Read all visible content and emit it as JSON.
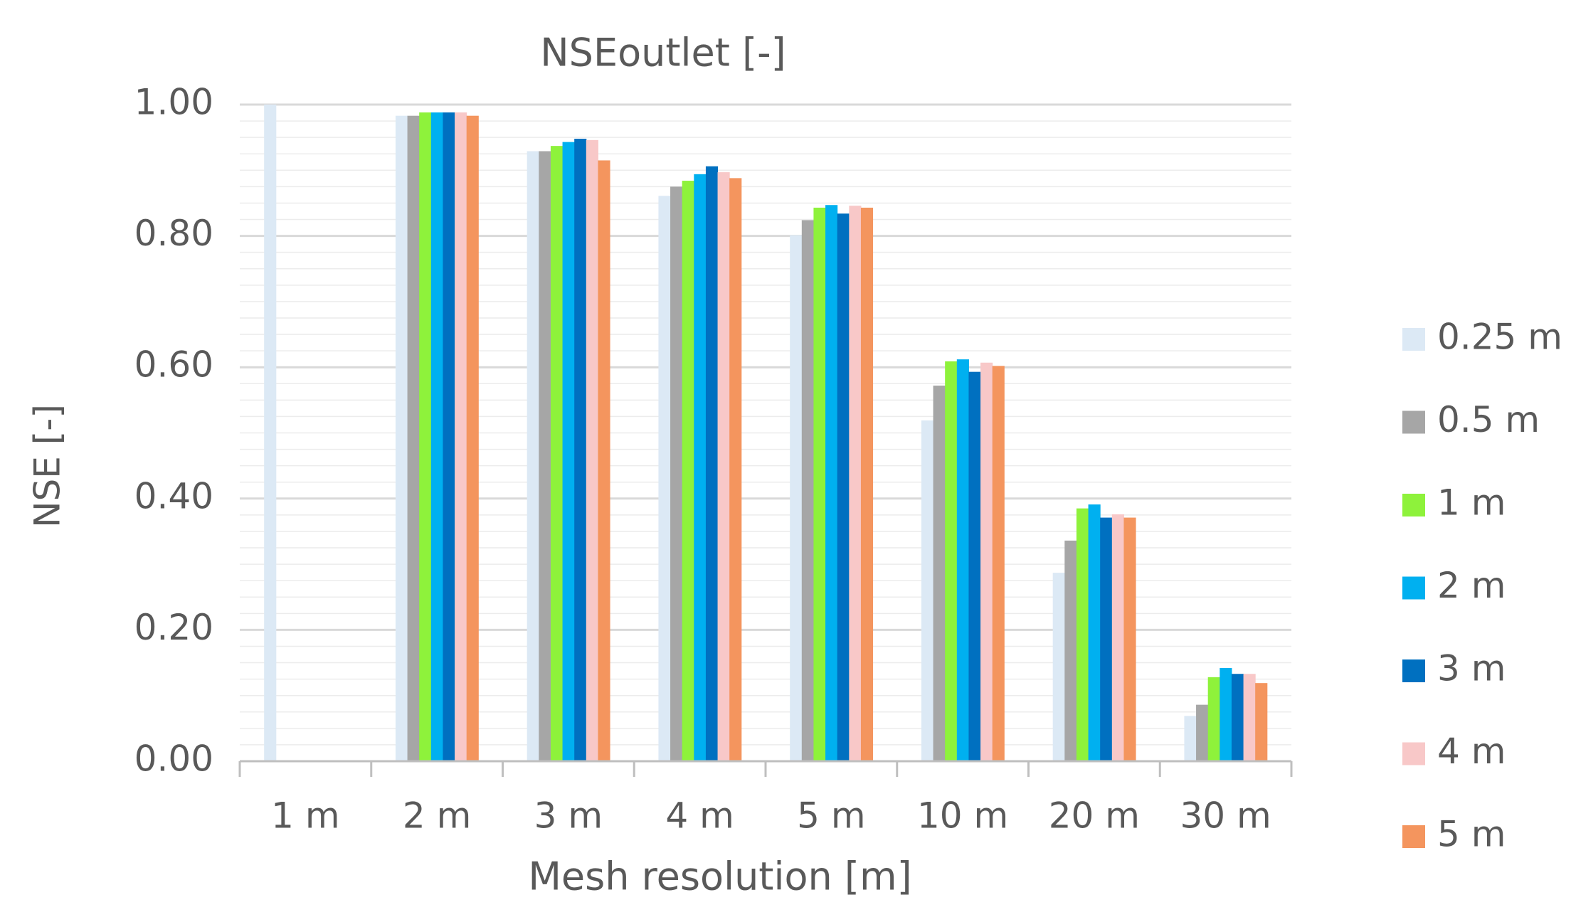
{
  "chart_data": {
    "type": "bar",
    "title": "NSEoutlet [-]",
    "x_label": "Mesh resolution [m]",
    "y_label": "NSE [-]",
    "categories": [
      "1 m",
      "2 m",
      "3 m",
      "4 m",
      "5 m",
      "10 m",
      "20 m",
      "30 m"
    ],
    "series": [
      {
        "name": "0.25 m",
        "color": "#dce9f5",
        "values": [
          1.0,
          0.983,
          0.929,
          0.861,
          0.801,
          0.519,
          0.287,
          0.069
        ]
      },
      {
        "name": "0.5 m",
        "color": "#a6a6a6",
        "values": [
          null,
          0.983,
          0.929,
          0.875,
          0.824,
          0.572,
          0.336,
          0.086
        ]
      },
      {
        "name": "1 m",
        "color": "#8ef23b",
        "values": [
          null,
          0.988,
          0.937,
          0.884,
          0.843,
          0.609,
          0.385,
          0.128
        ]
      },
      {
        "name": "2 m",
        "color": "#00b0f0",
        "values": [
          null,
          0.988,
          0.943,
          0.894,
          0.847,
          0.612,
          0.391,
          0.142
        ]
      },
      {
        "name": "3 m",
        "color": "#0070c0",
        "values": [
          null,
          0.988,
          0.948,
          0.906,
          0.834,
          0.593,
          0.371,
          0.133
        ]
      },
      {
        "name": "4 m",
        "color": "#f8c8c8",
        "values": [
          null,
          0.988,
          0.946,
          0.897,
          0.846,
          0.607,
          0.376,
          0.133
        ]
      },
      {
        "name": "5 m",
        "color": "#f4955e",
        "values": [
          null,
          0.983,
          0.915,
          0.888,
          0.843,
          0.602,
          0.371,
          0.119
        ]
      }
    ],
    "ylim": [
      0,
      1
    ],
    "yticks": [
      {
        "value": 0,
        "label": "0.00"
      },
      {
        "value": 0.2,
        "label": "0.20"
      },
      {
        "value": 0.4,
        "label": "0.40"
      },
      {
        "value": 0.6,
        "label": "0.60"
      },
      {
        "value": 0.8,
        "label": "0.80"
      },
      {
        "value": 1,
        "label": "1.00"
      }
    ],
    "minor_yticks": [
      0.025,
      0.05,
      0.075,
      0.1,
      0.125,
      0.15,
      0.175,
      0.225,
      0.25,
      0.275,
      0.3,
      0.325,
      0.35,
      0.375,
      0.425,
      0.45,
      0.475,
      0.5,
      0.525,
      0.55,
      0.575,
      0.625,
      0.65,
      0.675,
      0.7,
      0.725,
      0.75,
      0.775,
      0.825,
      0.85,
      0.875,
      0.9,
      0.925,
      0.95,
      0.975
    ],
    "grid": true,
    "legend": "right"
  }
}
